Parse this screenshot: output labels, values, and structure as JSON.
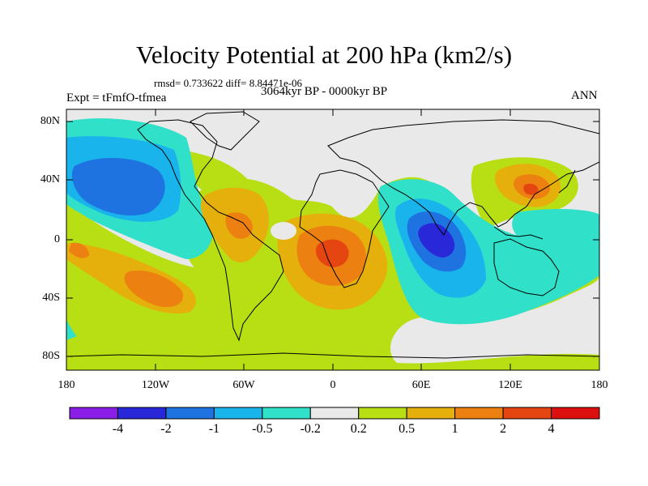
{
  "map": {
    "title": "Velocity Potential at 200 hPa (km2/s)",
    "stats": "rmsd= 0.733622 diff= 8.84471e-06",
    "experiment": "Expt = tFmfO-tfmea",
    "period": "3064kyr BP - 0000kyr BP",
    "season": "ANN",
    "y_ticks": [
      "80N",
      "40N",
      "0",
      "40S",
      "80S"
    ],
    "x_ticks": [
      "180",
      "120W",
      "60W",
      "0",
      "60E",
      "120E",
      "180"
    ]
  },
  "colorbar": {
    "colors": [
      "#8a1ee6",
      "#2828d8",
      "#1f73e0",
      "#19b4ec",
      "#30e0c8",
      "#e9e9e9",
      "#b8de14",
      "#e6b00c",
      "#ec8010",
      "#e54510",
      "#dd1010"
    ],
    "labels": [
      "-4",
      "-2",
      "-1",
      "-0.5",
      "-0.2",
      "0.2",
      "0.5",
      "1",
      "2",
      "4"
    ]
  }
}
